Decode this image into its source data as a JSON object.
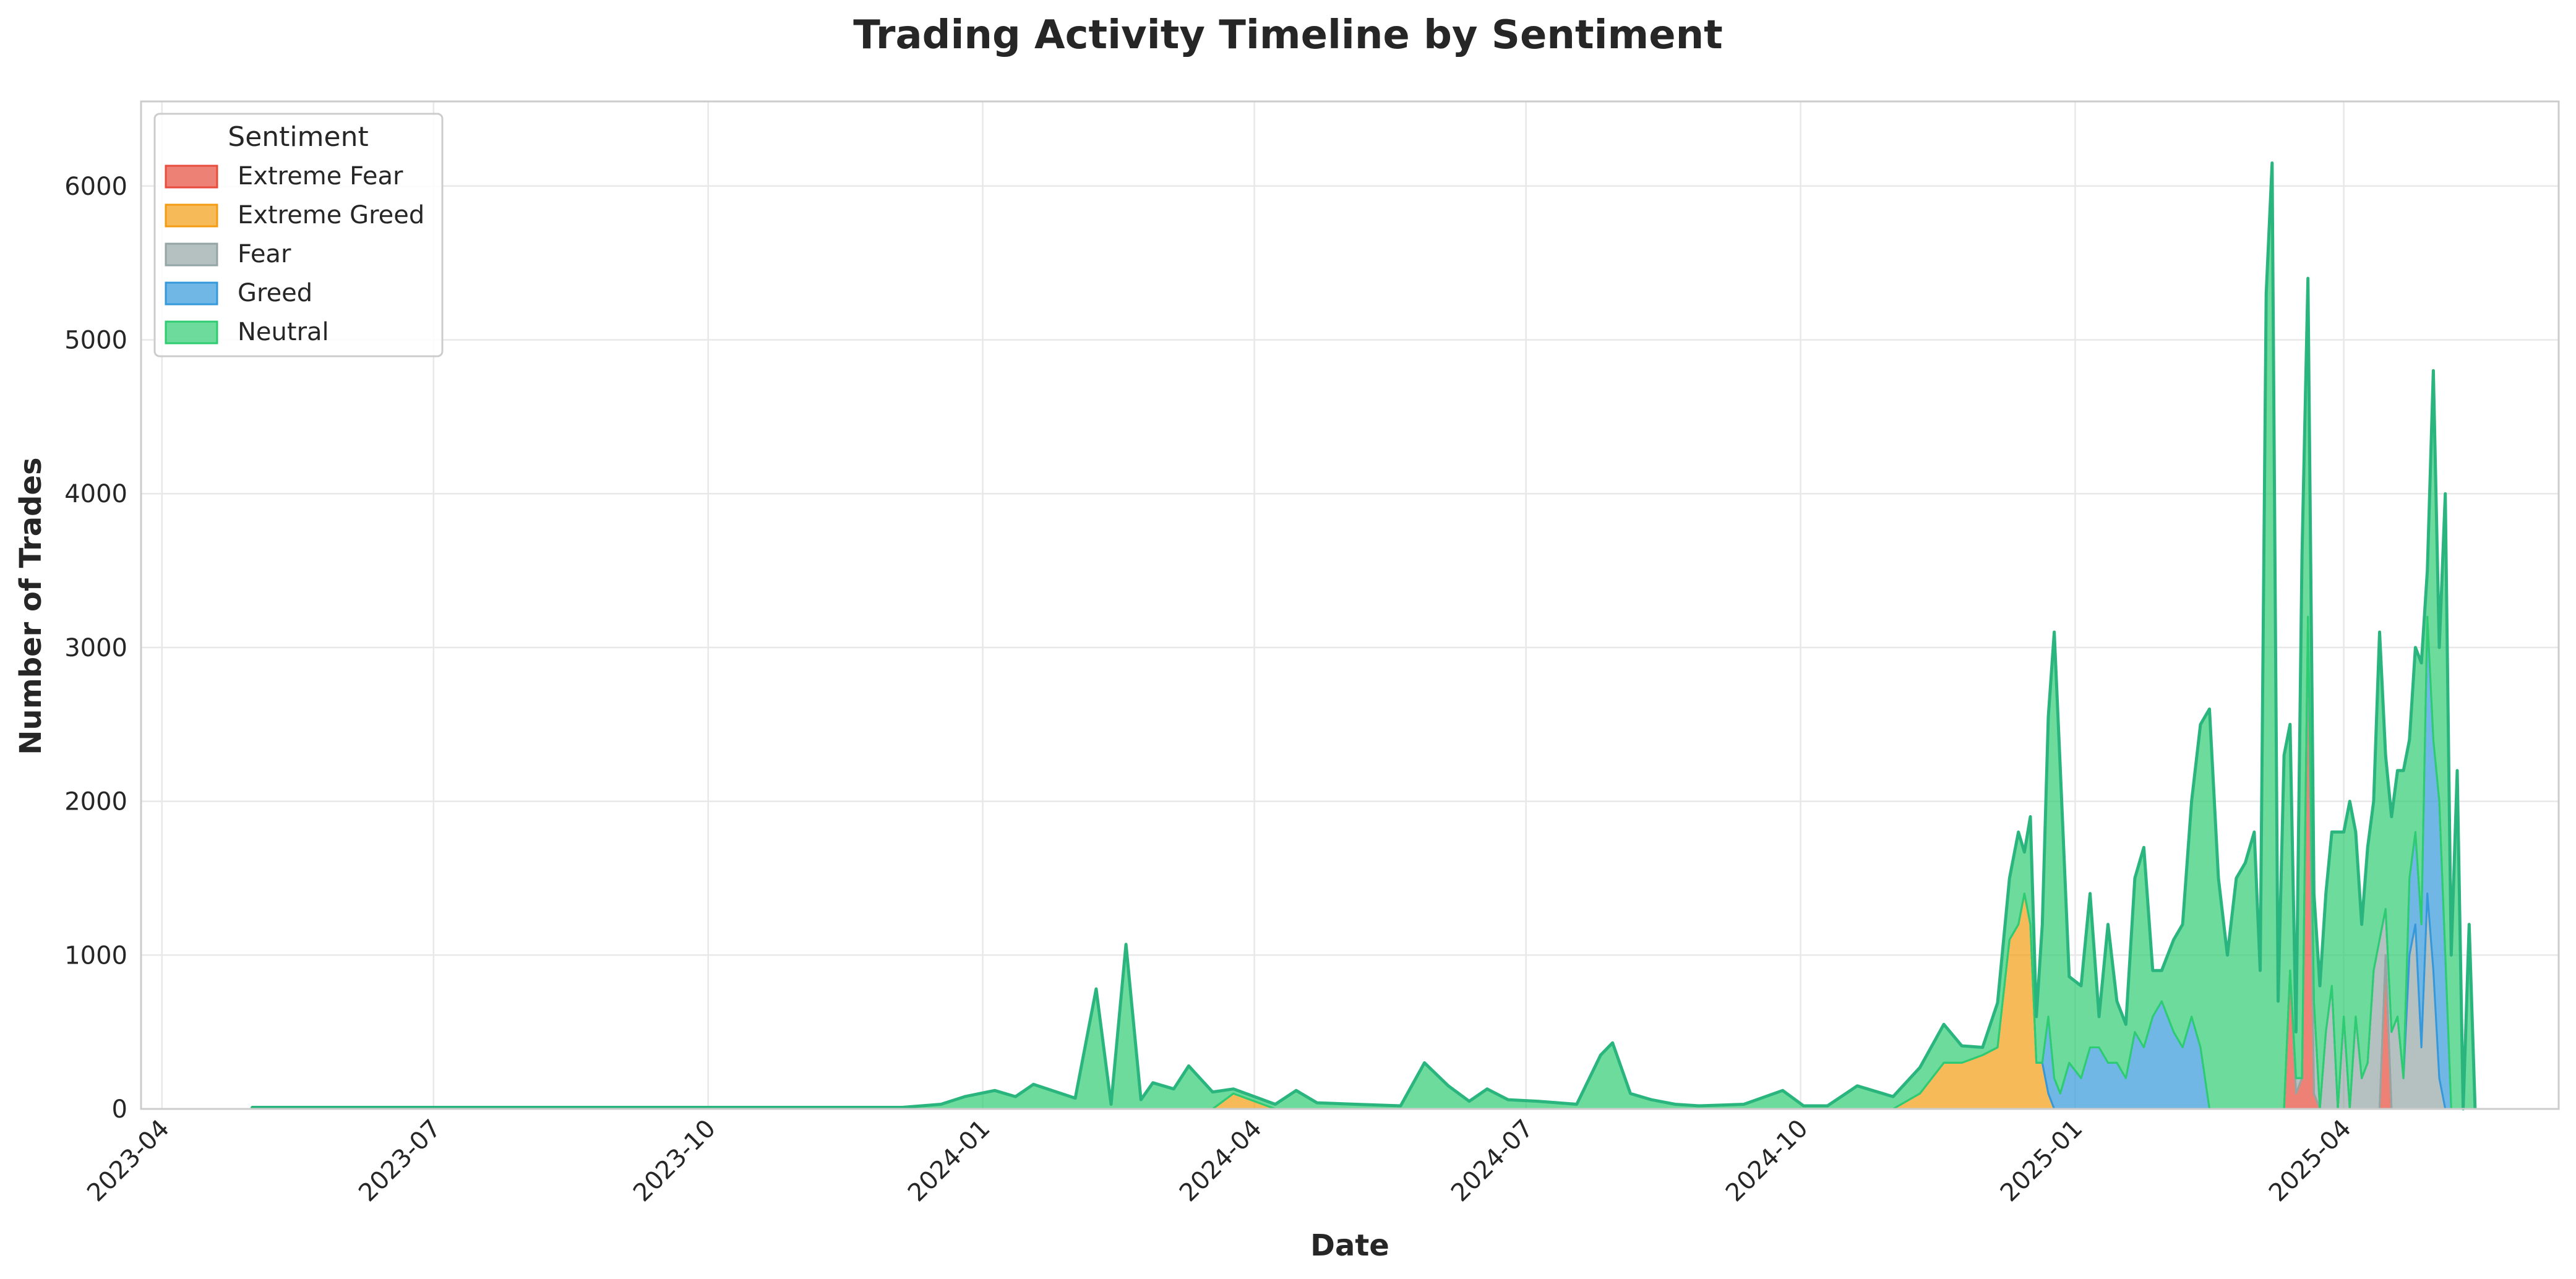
{
  "chart_data": {
    "type": "area",
    "title": "Trading Activity Timeline by Sentiment",
    "xlabel": "Date",
    "ylabel": "Number of Trades",
    "x_tick_labels": [
      "2023-04",
      "2023-07",
      "2023-10",
      "2024-01",
      "2024-04",
      "2024-07",
      "2024-10",
      "2025-01",
      "2025-04"
    ],
    "y_tick_labels": [
      "0",
      "1000",
      "2000",
      "3000",
      "4000",
      "5000",
      "6000"
    ],
    "xlim": [
      "2023-03-25",
      "2025-06-12"
    ],
    "ylim": [
      0,
      6550
    ],
    "grid": true,
    "legend": {
      "title": "Sentiment",
      "placement": "top-left",
      "entries": [
        "Extreme Fear",
        "Extreme Greed",
        "Fear",
        "Greed",
        "Neutral"
      ]
    },
    "colors": {
      "Extreme Fear": "#e74c3c",
      "Extreme Greed": "#f39c12",
      "Fear": "#95a5a6",
      "Greed": "#3498db",
      "Neutral": "#2ecc71",
      "outline": "#2bb57e"
    },
    "x": [
      "2023-05-01",
      "2023-07-01",
      "2023-10-01",
      "2023-12-05",
      "2023-12-18",
      "2023-12-26",
      "2024-01-05",
      "2024-01-12",
      "2024-01-18",
      "2024-02-01",
      "2024-02-08",
      "2024-02-13",
      "2024-02-18",
      "2024-02-23",
      "2024-02-27",
      "2024-03-05",
      "2024-03-10",
      "2024-03-18",
      "2024-03-25",
      "2024-04-08",
      "2024-04-15",
      "2024-04-22",
      "2024-05-05",
      "2024-05-20",
      "2024-05-28",
      "2024-06-05",
      "2024-06-12",
      "2024-06-18",
      "2024-06-25",
      "2024-07-05",
      "2024-07-18",
      "2024-07-26",
      "2024-07-30",
      "2024-08-05",
      "2024-08-12",
      "2024-08-20",
      "2024-08-28",
      "2024-09-12",
      "2024-09-25",
      "2024-10-02",
      "2024-10-10",
      "2024-10-20",
      "2024-11-01",
      "2024-11-10",
      "2024-11-18",
      "2024-11-24",
      "2024-12-01",
      "2024-12-06",
      "2024-12-10",
      "2024-12-13",
      "2024-12-15",
      "2024-12-17",
      "2024-12-19",
      "2024-12-21",
      "2024-12-23",
      "2024-12-25",
      "2024-12-27",
      "2024-12-30",
      "2025-01-03",
      "2025-01-06",
      "2025-01-09",
      "2025-01-12",
      "2025-01-15",
      "2025-01-18",
      "2025-01-21",
      "2025-01-24",
      "2025-01-27",
      "2025-01-30",
      "2025-02-03",
      "2025-02-06",
      "2025-02-09",
      "2025-02-12",
      "2025-02-15",
      "2025-02-18",
      "2025-02-21",
      "2025-02-24",
      "2025-02-27",
      "2025-03-02",
      "2025-03-04",
      "2025-03-06",
      "2025-03-08",
      "2025-03-10",
      "2025-03-12",
      "2025-03-14",
      "2025-03-16",
      "2025-03-18",
      "2025-03-20",
      "2025-03-22",
      "2025-03-24",
      "2025-03-26",
      "2025-03-28",
      "2025-03-30",
      "2025-04-01",
      "2025-04-03",
      "2025-04-05",
      "2025-04-07",
      "2025-04-09",
      "2025-04-11",
      "2025-04-13",
      "2025-04-15",
      "2025-04-17",
      "2025-04-19",
      "2025-04-21",
      "2025-04-23",
      "2025-04-25",
      "2025-04-27",
      "2025-04-29",
      "2025-05-01",
      "2025-05-03",
      "2025-05-05",
      "2025-05-07",
      "2025-05-09",
      "2025-05-11",
      "2025-05-13",
      "2025-05-15"
    ],
    "series": [
      {
        "name": "Extreme Fear",
        "values": [
          0,
          0,
          0,
          0,
          0,
          0,
          0,
          0,
          0,
          0,
          0,
          0,
          0,
          0,
          0,
          0,
          0,
          0,
          0,
          0,
          0,
          0,
          0,
          0,
          0,
          0,
          0,
          0,
          0,
          0,
          0,
          0,
          0,
          0,
          0,
          0,
          0,
          0,
          0,
          0,
          0,
          0,
          0,
          0,
          0,
          0,
          0,
          0,
          0,
          0,
          0,
          0,
          0,
          0,
          0,
          0,
          0,
          0,
          0,
          0,
          0,
          0,
          0,
          0,
          0,
          0,
          0,
          0,
          0,
          0,
          0,
          0,
          0,
          0,
          0,
          0,
          0,
          0,
          0,
          0,
          0,
          0,
          0,
          900,
          100,
          200,
          3000,
          100,
          0,
          0,
          0,
          0,
          0,
          0,
          0,
          0,
          0,
          0,
          0,
          1000,
          0,
          0,
          0,
          0,
          0,
          0,
          0,
          0,
          0,
          0,
          0,
          0,
          0,
          0,
          0
        ]
      },
      {
        "name": "Extreme Greed",
        "values": [
          0,
          0,
          0,
          0,
          0,
          0,
          0,
          0,
          0,
          0,
          0,
          0,
          0,
          0,
          0,
          0,
          0,
          0,
          100,
          0,
          0,
          0,
          0,
          0,
          0,
          0,
          0,
          0,
          0,
          0,
          0,
          0,
          0,
          0,
          0,
          0,
          0,
          0,
          0,
          0,
          0,
          0,
          0,
          100,
          300,
          300,
          350,
          400,
          1100,
          1200,
          1400,
          1200,
          300,
          300,
          100,
          0,
          0,
          0,
          0,
          0,
          0,
          0,
          0,
          0,
          0,
          0,
          0,
          0,
          0,
          0,
          0,
          0,
          0,
          0,
          0,
          0,
          0,
          0,
          0,
          0,
          0,
          0,
          0,
          0,
          0,
          0,
          0,
          0,
          0,
          0,
          0,
          0,
          0,
          0,
          0,
          0,
          0,
          0,
          0,
          0,
          0,
          0,
          0,
          0,
          0,
          0,
          0,
          0,
          0,
          0,
          0,
          0,
          0,
          0,
          0
        ]
      },
      {
        "name": "Fear",
        "values": [
          0,
          0,
          0,
          0,
          0,
          0,
          0,
          0,
          0,
          0,
          0,
          0,
          0,
          0,
          0,
          0,
          0,
          0,
          0,
          0,
          0,
          0,
          0,
          0,
          0,
          0,
          0,
          0,
          0,
          0,
          0,
          0,
          0,
          0,
          0,
          0,
          0,
          0,
          0,
          0,
          0,
          0,
          0,
          0,
          0,
          0,
          0,
          0,
          0,
          0,
          0,
          0,
          0,
          0,
          0,
          0,
          0,
          0,
          0,
          0,
          0,
          0,
          0,
          0,
          0,
          0,
          0,
          0,
          0,
          0,
          0,
          0,
          0,
          0,
          0,
          0,
          0,
          0,
          0,
          0,
          0,
          0,
          0,
          0,
          100,
          0,
          200,
          600,
          0,
          500,
          800,
          0,
          600,
          0,
          600,
          200,
          300,
          900,
          1100,
          300,
          500,
          600,
          200,
          1000,
          1200,
          400,
          1400,
          900,
          200,
          0,
          0,
          0,
          0,
          0,
          0
        ]
      },
      {
        "name": "Greed",
        "values": [
          0,
          0,
          0,
          0,
          0,
          0,
          0,
          0,
          0,
          0,
          0,
          0,
          0,
          0,
          0,
          0,
          0,
          0,
          0,
          0,
          0,
          0,
          0,
          0,
          0,
          0,
          0,
          0,
          0,
          0,
          0,
          0,
          0,
          0,
          0,
          0,
          0,
          0,
          0,
          0,
          0,
          0,
          0,
          0,
          0,
          0,
          0,
          0,
          0,
          0,
          0,
          0,
          0,
          0,
          500,
          200,
          100,
          300,
          200,
          400,
          400,
          300,
          300,
          200,
          500,
          400,
          600,
          700,
          500,
          400,
          600,
          400,
          0,
          0,
          0,
          0,
          0,
          0,
          0,
          0,
          0,
          0,
          0,
          0,
          0,
          0,
          0,
          0,
          0,
          0,
          0,
          0,
          0,
          0,
          0,
          0,
          0,
          0,
          0,
          0,
          0,
          0,
          0,
          500,
          600,
          800,
          1800,
          1500,
          1800,
          1000,
          0,
          0,
          0,
          0,
          0
        ]
      },
      {
        "name": "Neutral",
        "values": [
          10,
          10,
          10,
          10,
          30,
          80,
          120,
          80,
          160,
          70,
          780,
          30,
          1070,
          60,
          170,
          130,
          280,
          110,
          30,
          30,
          120,
          40,
          30,
          20,
          300,
          150,
          50,
          130,
          60,
          50,
          30,
          350,
          430,
          100,
          60,
          30,
          20,
          30,
          120,
          20,
          20,
          150,
          80,
          170,
          250,
          110,
          50,
          290,
          400,
          600,
          270,
          700,
          300,
          900,
          1950,
          2900,
          2120,
          560,
          600,
          1000,
          200,
          900,
          400,
          350,
          1000,
          1300,
          300,
          200,
          600,
          800,
          1400,
          2100,
          2600,
          1500,
          1000,
          1500,
          1600,
          1800,
          900,
          5300,
          6150,
          700,
          2300,
          1600,
          300,
          3400,
          2200,
          700,
          800,
          900,
          1000,
          1800,
          1200,
          2000,
          1200,
          1000,
          1400,
          1100,
          2000,
          1000,
          1400,
          1600,
          2000,
          900,
          1200,
          1700,
          300,
          2400,
          1000,
          3000,
          1000,
          2200,
          0,
          1200,
          0
        ]
      }
    ]
  }
}
